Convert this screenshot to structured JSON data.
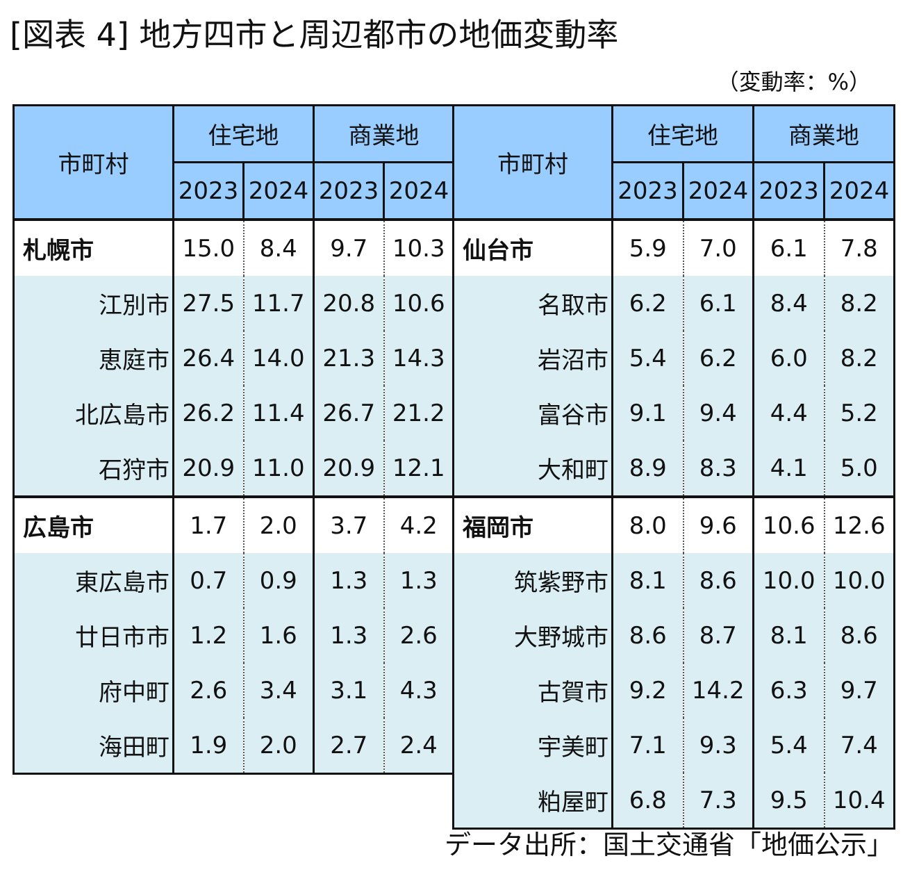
{
  "title": "[図表 4] 地方四市と周辺都市の地価変動率",
  "unit_note": "（変動率：%）",
  "source": "データ出所：国土交通省「地価公示」",
  "header": {
    "municipality": "市町村",
    "residential": "住宅地",
    "commercial": "商業地",
    "year1": "2023",
    "year2": "2024"
  },
  "chart_data": {
    "type": "table",
    "columns": [
      "市町村",
      "住宅地 2023",
      "住宅地 2024",
      "商業地 2023",
      "商業地 2024"
    ],
    "groups": [
      {
        "city": "札幌市",
        "values": [
          "15.0",
          "8.4",
          "9.7",
          "10.3"
        ],
        "neighbors": [
          {
            "name": "江別市",
            "values": [
              "27.5",
              "11.7",
              "20.8",
              "10.6"
            ]
          },
          {
            "name": "恵庭市",
            "values": [
              "26.4",
              "14.0",
              "21.3",
              "14.3"
            ]
          },
          {
            "name": "北広島市",
            "values": [
              "26.2",
              "11.4",
              "26.7",
              "21.2"
            ]
          },
          {
            "name": "石狩市",
            "values": [
              "20.9",
              "11.0",
              "20.9",
              "12.1"
            ]
          }
        ]
      },
      {
        "city": "広島市",
        "values": [
          "1.7",
          "2.0",
          "3.7",
          "4.2"
        ],
        "neighbors": [
          {
            "name": "東広島市",
            "values": [
              "0.7",
              "0.9",
              "1.3",
              "1.3"
            ]
          },
          {
            "name": "廿日市市",
            "values": [
              "1.2",
              "1.6",
              "1.3",
              "2.6"
            ]
          },
          {
            "name": "府中町",
            "values": [
              "2.6",
              "3.4",
              "3.1",
              "4.3"
            ]
          },
          {
            "name": "海田町",
            "values": [
              "1.9",
              "2.0",
              "2.7",
              "2.4"
            ]
          }
        ]
      },
      {
        "city": "仙台市",
        "values": [
          "5.9",
          "7.0",
          "6.1",
          "7.8"
        ],
        "neighbors": [
          {
            "name": "名取市",
            "values": [
              "6.2",
              "6.1",
              "8.4",
              "8.2"
            ]
          },
          {
            "name": "岩沼市",
            "values": [
              "5.4",
              "6.2",
              "6.0",
              "8.2"
            ]
          },
          {
            "name": "富谷市",
            "values": [
              "9.1",
              "9.4",
              "4.4",
              "5.2"
            ]
          },
          {
            "name": "大和町",
            "values": [
              "8.9",
              "8.3",
              "4.1",
              "5.0"
            ]
          }
        ]
      },
      {
        "city": "福岡市",
        "values": [
          "8.0",
          "9.6",
          "10.6",
          "12.6"
        ],
        "neighbors": [
          {
            "name": "筑紫野市",
            "values": [
              "8.1",
              "8.6",
              "10.0",
              "10.0"
            ]
          },
          {
            "name": "大野城市",
            "values": [
              "8.6",
              "8.7",
              "8.1",
              "8.6"
            ]
          },
          {
            "name": "古賀市",
            "values": [
              "9.2",
              "14.2",
              "6.3",
              "9.7"
            ]
          },
          {
            "name": "宇美町",
            "values": [
              "7.1",
              "9.3",
              "5.4",
              "7.4"
            ]
          },
          {
            "name": "粕屋町",
            "values": [
              "6.8",
              "7.3",
              "9.5",
              "10.4"
            ]
          }
        ]
      }
    ]
  }
}
